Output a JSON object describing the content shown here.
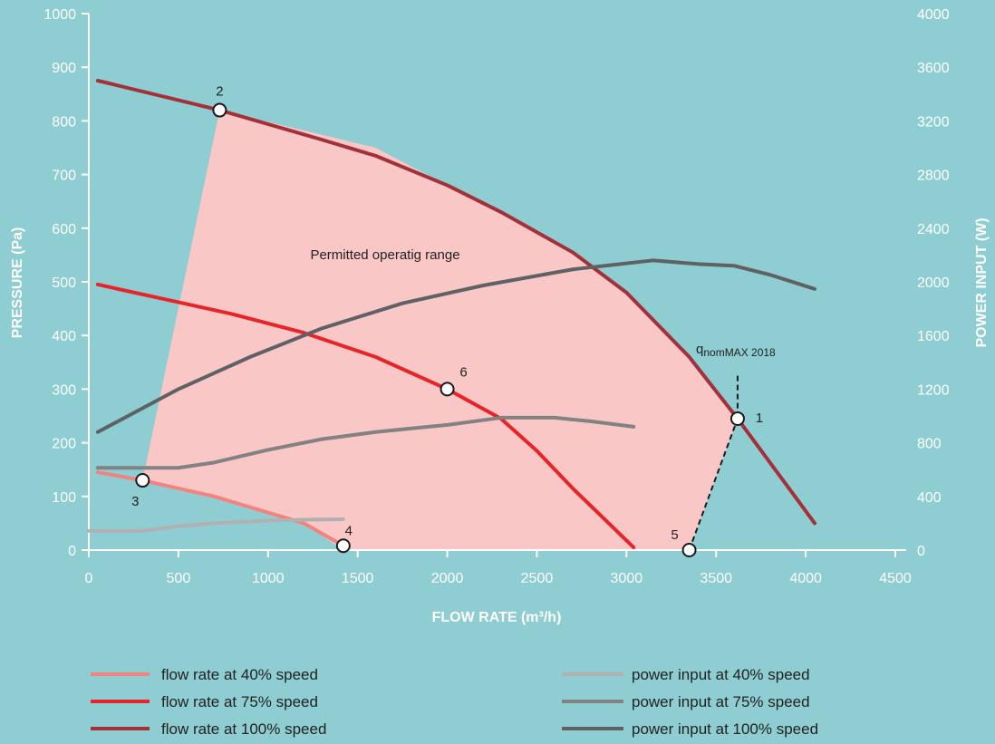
{
  "chart_data": {
    "type": "line",
    "colors": {
      "background": "#8ecdd1",
      "region": "#f9c7c6",
      "flow40": "#f4827e",
      "flow75": "#e92428",
      "flow100": "#a3313a",
      "power40": "#b1b1b1",
      "power75": "#828282",
      "power100": "#5f6165"
    },
    "xlabel": "FLOW RATE (m³/h)",
    "ylabel": "PRESSURE (Pa)",
    "y2label": "POWER INPUT (W)",
    "xlim": [
      0,
      4500
    ],
    "ylim": [
      0,
      1000
    ],
    "y2lim": [
      0,
      4000
    ],
    "xticks": [
      "0",
      "500",
      "1000",
      "1500",
      "2000",
      "2500",
      "3000",
      "3500",
      "4000",
      "4500"
    ],
    "yticks": [
      "0",
      "100",
      "200",
      "300",
      "400",
      "500",
      "600",
      "700",
      "800",
      "900",
      "1000"
    ],
    "y2ticks": [
      "0",
      "400",
      "800",
      "1200",
      "1600",
      "2000",
      "2400",
      "2800",
      "3200",
      "3600",
      "4000"
    ],
    "region": {
      "label": "Permitted operatig range",
      "polygon": [
        [
          300,
          130
        ],
        [
          730,
          820
        ],
        [
          1600,
          750
        ],
        [
          2000,
          680
        ],
        [
          2300,
          630
        ],
        [
          2700,
          555
        ],
        [
          3000,
          480
        ],
        [
          3350,
          360
        ],
        [
          3620,
          245
        ],
        [
          3350,
          0
        ],
        [
          1420,
          0
        ],
        [
          1200,
          50
        ],
        [
          700,
          100
        ],
        [
          300,
          130
        ]
      ]
    },
    "series": [
      {
        "name": "flow rate at 40% speed",
        "axis": "left",
        "color_key": "flow40",
        "points": [
          [
            50,
            145
          ],
          [
            300,
            130
          ],
          [
            700,
            100
          ],
          [
            1200,
            50
          ],
          [
            1420,
            8
          ]
        ]
      },
      {
        "name": "flow rate at 75% speed",
        "axis": "left",
        "color_key": "flow75",
        "points": [
          [
            50,
            495
          ],
          [
            800,
            440
          ],
          [
            1200,
            405
          ],
          [
            1600,
            360
          ],
          [
            2000,
            300
          ],
          [
            2300,
            245
          ],
          [
            2500,
            185
          ],
          [
            2700,
            115
          ],
          [
            3040,
            5
          ]
        ]
      },
      {
        "name": "flow rate at 100% speed",
        "axis": "left",
        "color_key": "flow100",
        "points": [
          [
            50,
            875
          ],
          [
            730,
            820
          ],
          [
            1300,
            765
          ],
          [
            1600,
            735
          ],
          [
            2000,
            680
          ],
          [
            2300,
            630
          ],
          [
            2700,
            555
          ],
          [
            3000,
            480
          ],
          [
            3350,
            360
          ],
          [
            3620,
            245
          ],
          [
            4050,
            50
          ]
        ]
      },
      {
        "name": "power input at 40% speed",
        "axis": "right",
        "color_key": "power40",
        "points": [
          [
            0,
            143
          ],
          [
            300,
            143
          ],
          [
            500,
            178
          ],
          [
            700,
            200
          ],
          [
            1000,
            220
          ],
          [
            1200,
            226
          ],
          [
            1420,
            230
          ]
        ]
      },
      {
        "name": "power input at 75% speed",
        "axis": "right",
        "color_key": "power75",
        "points": [
          [
            50,
            613
          ],
          [
            500,
            613
          ],
          [
            700,
            653
          ],
          [
            1000,
            747
          ],
          [
            1300,
            827
          ],
          [
            1600,
            880
          ],
          [
            1800,
            907
          ],
          [
            2000,
            933
          ],
          [
            2300,
            987
          ],
          [
            2600,
            987
          ],
          [
            2800,
            960
          ],
          [
            3040,
            920
          ]
        ]
      },
      {
        "name": "power input at 100% speed",
        "axis": "right",
        "color_key": "power100",
        "points": [
          [
            50,
            880
          ],
          [
            500,
            1200
          ],
          [
            900,
            1440
          ],
          [
            1300,
            1653
          ],
          [
            1750,
            1840
          ],
          [
            2200,
            1973
          ],
          [
            2700,
            2093
          ],
          [
            3150,
            2160
          ],
          [
            3400,
            2133
          ],
          [
            3600,
            2120
          ],
          [
            3800,
            2053
          ],
          [
            4050,
            1947
          ]
        ]
      }
    ],
    "markers": [
      {
        "label": "1",
        "x": 3620,
        "y": 245
      },
      {
        "label": "2",
        "x": 730,
        "y": 820
      },
      {
        "label": "3",
        "x": 300,
        "y": 130
      },
      {
        "label": "4",
        "x": 1420,
        "y": 8
      },
      {
        "label": "5",
        "x": 3350,
        "y": 0
      },
      {
        "label": "6",
        "x": 2000,
        "y": 300
      }
    ],
    "qnom": {
      "main": "q",
      "sub": "nomMAX 2018",
      "x": 3620,
      "y_top": 325
    },
    "legend": {
      "left": [
        "flow rate at 40% speed",
        "flow rate at 75% speed",
        "flow rate at 100% speed"
      ],
      "right": [
        "power input at 40% speed",
        "power input at 75% speed",
        "power input at 100% speed"
      ],
      "placement": "bottom"
    }
  }
}
